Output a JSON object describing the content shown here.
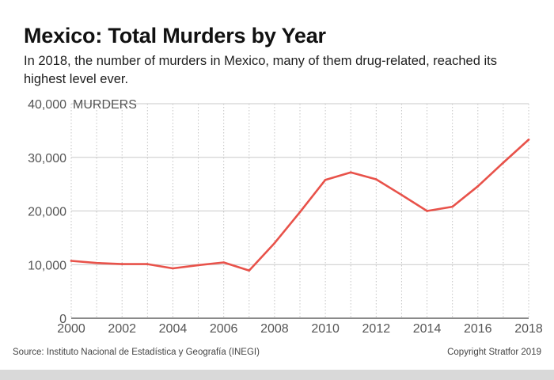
{
  "header": {
    "title": "Mexico: Total Murders by Year",
    "subtitle": "In 2018, the number of murders in Mexico, many of them drug-related, reached its highest level ever."
  },
  "footer": {
    "source": "Source: Instituto Nacional de Estadística y Geografía (INEGI)",
    "copyright": "Copyright Stratfor 2019"
  },
  "chart_data": {
    "type": "line",
    "title": "Mexico: Total Murders by Year",
    "subtitle": "In 2018, the number of murders in Mexico, many of them drug-related, reached its highest level ever.",
    "ylabel": "MURDERS",
    "xlabel": "",
    "x": [
      2000,
      2001,
      2002,
      2003,
      2004,
      2005,
      2006,
      2007,
      2008,
      2009,
      2010,
      2011,
      2012,
      2013,
      2014,
      2015,
      2016,
      2017,
      2018
    ],
    "series": [
      {
        "values": [
          10700,
          10300,
          10100,
          10100,
          9300,
          9900,
          10400,
          8900,
          14000,
          19800,
          25800,
          27200,
          25900,
          23000,
          20000,
          20800,
          24600,
          29000,
          33300
        ],
        "color": "#e8524a"
      }
    ],
    "ylim": [
      0,
      40000
    ],
    "xlim": [
      2000,
      2018
    ],
    "yticks": [
      0,
      10000,
      20000,
      30000,
      40000
    ],
    "ytick_labels": [
      "0",
      "10,000",
      "20,000",
      "30,000",
      "40,000"
    ],
    "xticks": [
      2000,
      2002,
      2004,
      2006,
      2008,
      2010,
      2012,
      2014,
      2016,
      2018
    ],
    "xtick_labels": [
      "2000",
      "2002",
      "2004",
      "2006",
      "2008",
      "2010",
      "2012",
      "2014",
      "2016",
      "2018"
    ],
    "grid": true,
    "legend": "none"
  }
}
